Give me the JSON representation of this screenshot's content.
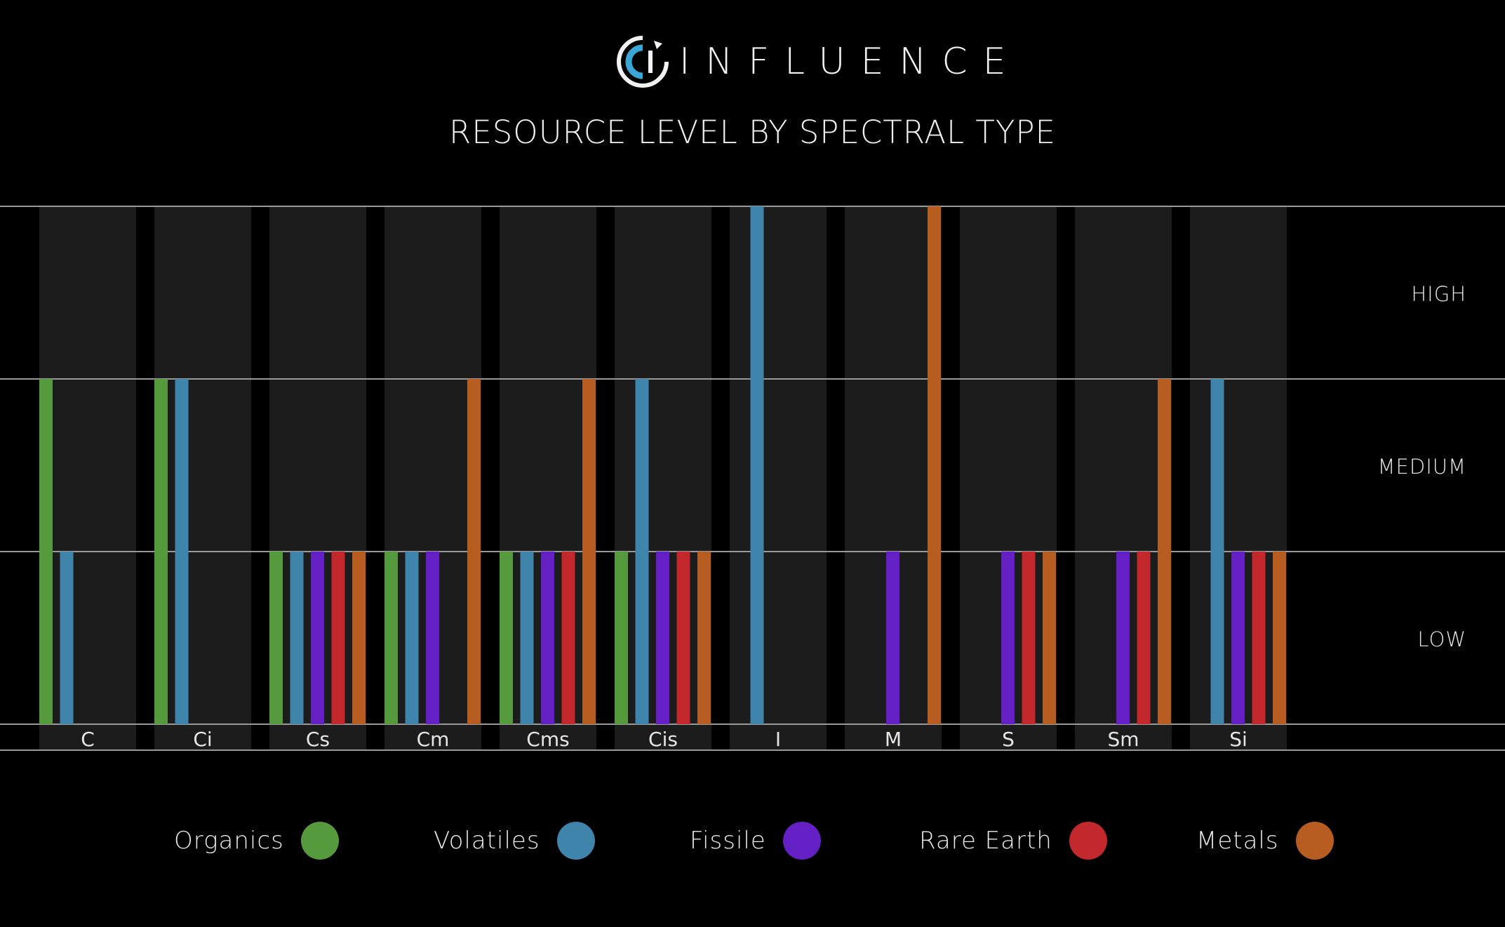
{
  "brand": {
    "name": "INFLUENCE",
    "logo_icon": "influence-logo-icon",
    "accent": "#3aa6d6"
  },
  "chart_data": {
    "type": "bar",
    "title": "RESOURCE LEVEL BY SPECTRAL TYPE",
    "levels": [
      "LOW",
      "MEDIUM",
      "HIGH"
    ],
    "ylim": [
      0,
      3
    ],
    "grid": true,
    "categories": [
      "C",
      "Ci",
      "Cs",
      "Cm",
      "Cms",
      "Cis",
      "I",
      "M",
      "S",
      "Sm",
      "Si"
    ],
    "series": [
      {
        "name": "Organics",
        "color": "#559a3c",
        "values": [
          2,
          2,
          1,
          1,
          1,
          1,
          0,
          0,
          0,
          0,
          0
        ]
      },
      {
        "name": "Volatiles",
        "color": "#3f84ab",
        "values": [
          1,
          2,
          1,
          1,
          1,
          2,
          3,
          0,
          0,
          0,
          2
        ]
      },
      {
        "name": "Fissile",
        "color": "#6420c4",
        "values": [
          0,
          0,
          1,
          1,
          1,
          1,
          0,
          1,
          1,
          1,
          1
        ]
      },
      {
        "name": "Rare Earth",
        "color": "#c2282c",
        "values": [
          0,
          0,
          1,
          0,
          1,
          1,
          0,
          0,
          1,
          1,
          1
        ]
      },
      {
        "name": "Metals",
        "color": "#b85d22",
        "values": [
          0,
          0,
          1,
          2,
          2,
          1,
          0,
          3,
          1,
          2,
          1
        ]
      }
    ],
    "legend_position": "bottom"
  }
}
